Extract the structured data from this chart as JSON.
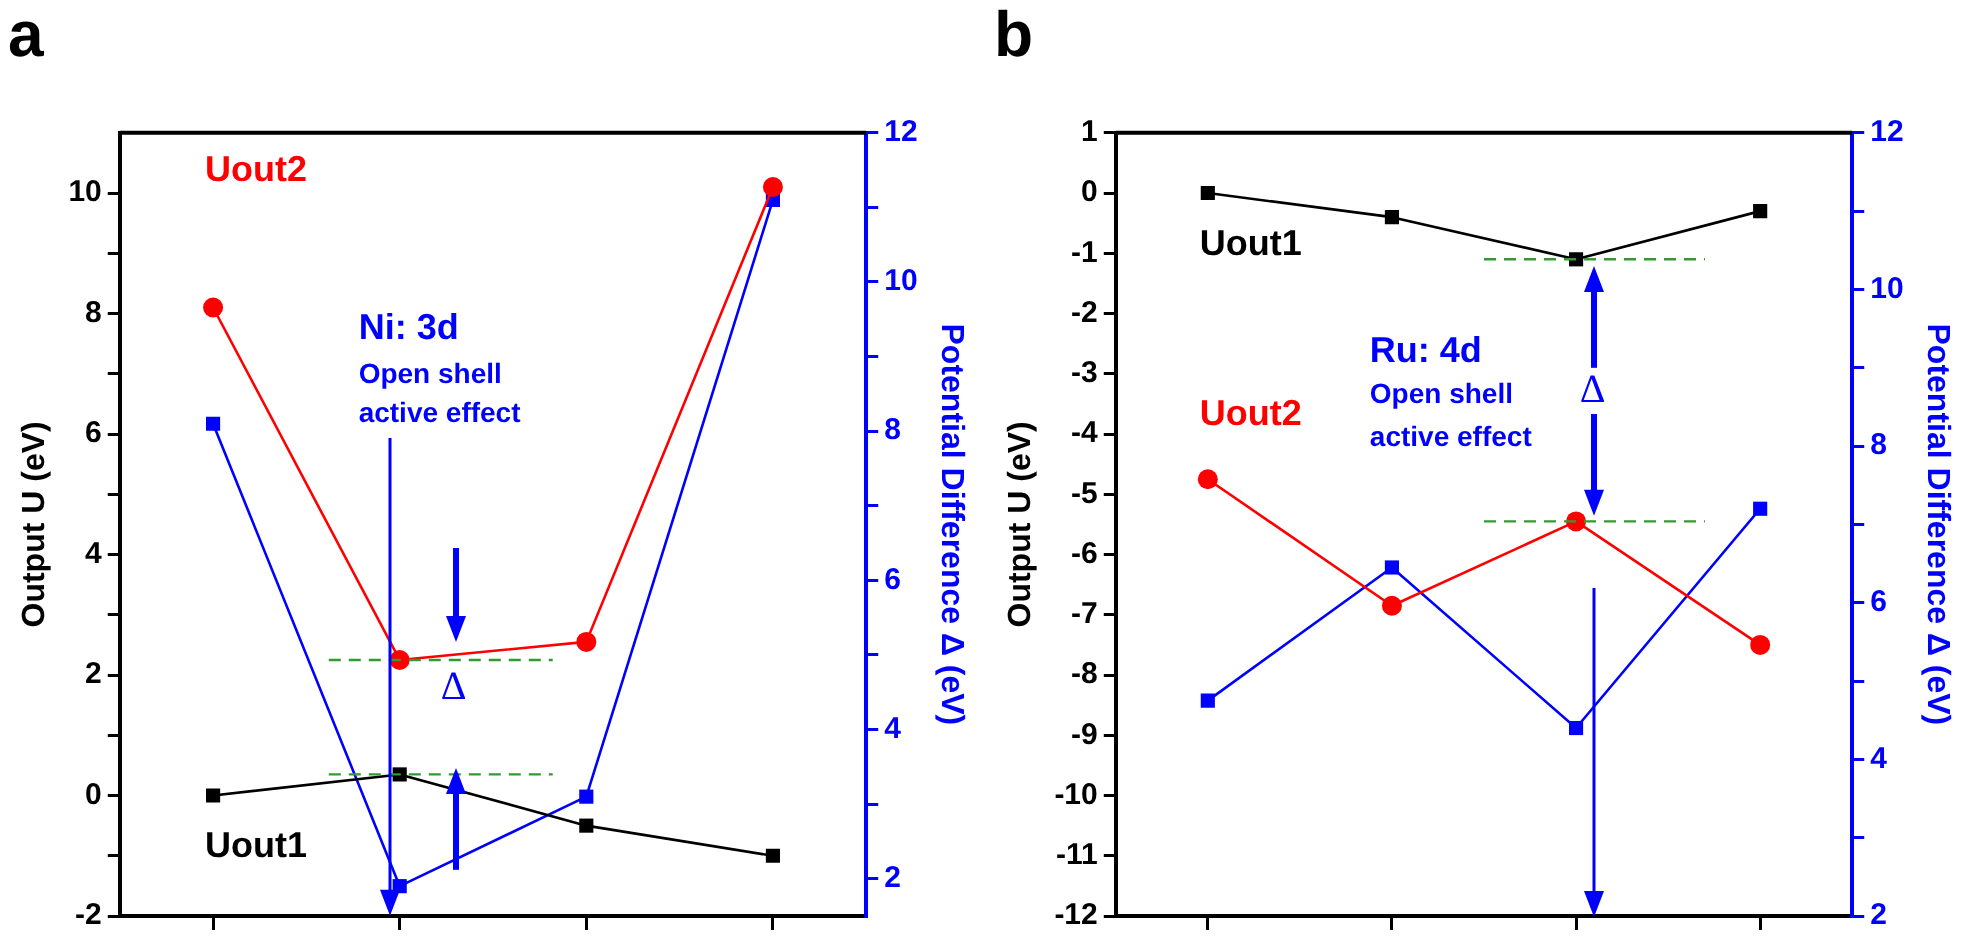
{
  "chart_data": [
    {
      "type": "line",
      "title": "a",
      "ylabel": "Output U (eV)",
      "y2label": "Potential Difference Δ (eV)",
      "categories": [
        null,
        null,
        null,
        null
      ],
      "tick_labels": "y",
      "grid": false,
      "legend": false,
      "series": [
        {
          "name": "Uout1",
          "color": "#000000",
          "marker": "square",
          "values": [
            0,
            0.35,
            -0.5,
            -1.0
          ]
        },
        {
          "name": "Uout2",
          "color": "#ff0000",
          "marker": "circle",
          "values": [
            8.1,
            2.25,
            2.55,
            10.1
          ]
        },
        {
          "color": "#0000ff",
          "marker": "square",
          "axis": "y2",
          "values": [
            8.1,
            1.9,
            3.1,
            11.1
          ]
        }
      ],
      "ylim": [
        -2,
        11
      ],
      "yticks": [
        -2,
        {
          "value": -1,
          "label": null
        },
        0,
        {
          "value": 1,
          "label": null
        },
        2,
        {
          "value": 3,
          "label": null
        },
        4,
        {
          "value": 5,
          "label": null
        },
        6,
        {
          "value": 7,
          "label": null
        },
        8,
        {
          "value": 9,
          "label": null
        },
        10
      ],
      "y2lim": [
        1.5,
        12
      ],
      "y2ticks": [
        2,
        {
          "value": 3,
          "label": null
        },
        4,
        {
          "value": 5,
          "label": null
        },
        6,
        {
          "value": 7,
          "label": null
        },
        8,
        {
          "value": 9,
          "label": null
        },
        10,
        {
          "value": 11,
          "label": null
        },
        12
      ],
      "ref_lines": [
        {
          "axis": "y",
          "value": 2.25,
          "color": "#339933",
          "line_style": "dashed"
        },
        {
          "axis": "y",
          "value": 0.35,
          "color": "#339933",
          "line_style": "dashed"
        }
      ],
      "annotations": [
        "Ni: 3d",
        "Open shell",
        "active effect",
        "Δ"
      ]
    },
    {
      "type": "line",
      "title": "b",
      "ylabel": "Output U (eV)",
      "y2label": "Potential Difference Δ (eV)",
      "categories": [
        null,
        null,
        null,
        null
      ],
      "tick_labels": "y",
      "grid": false,
      "legend": false,
      "series": [
        {
          "name": "Uout1",
          "color": "#000000",
          "marker": "square",
          "values": [
            0,
            -0.4,
            -1.1,
            -0.3
          ]
        },
        {
          "name": "Uout2",
          "color": "#ff0000",
          "marker": "circle",
          "values": [
            -4.75,
            -6.85,
            -5.45,
            -7.5
          ]
        },
        {
          "color": "#0000ff",
          "marker": "square",
          "axis": "y2",
          "values": [
            4.75,
            6.45,
            4.4,
            7.2
          ]
        }
      ],
      "ylim": [
        -12,
        1
      ],
      "yticks": [
        -12,
        -11,
        -10,
        -9,
        -8,
        -7,
        -6,
        -5,
        -4,
        -3,
        -2,
        -1,
        0,
        1
      ],
      "y2lim": [
        2,
        12
      ],
      "y2ticks": [
        2,
        {
          "value": 3,
          "label": null
        },
        4,
        {
          "value": 5,
          "label": null
        },
        6,
        {
          "value": 7,
          "label": null
        },
        8,
        {
          "value": 9,
          "label": null
        },
        10,
        {
          "value": 11,
          "label": null
        },
        12
      ],
      "ref_lines": [
        {
          "axis": "y",
          "value": -1.1,
          "color": "#339933",
          "line_style": "dashed"
        },
        {
          "axis": "y",
          "value": -5.45,
          "color": "#339933",
          "line_style": "dashed"
        }
      ],
      "annotations": [
        "Ru: 4d",
        "Open shell",
        "active effect",
        "Δ"
      ]
    }
  ]
}
